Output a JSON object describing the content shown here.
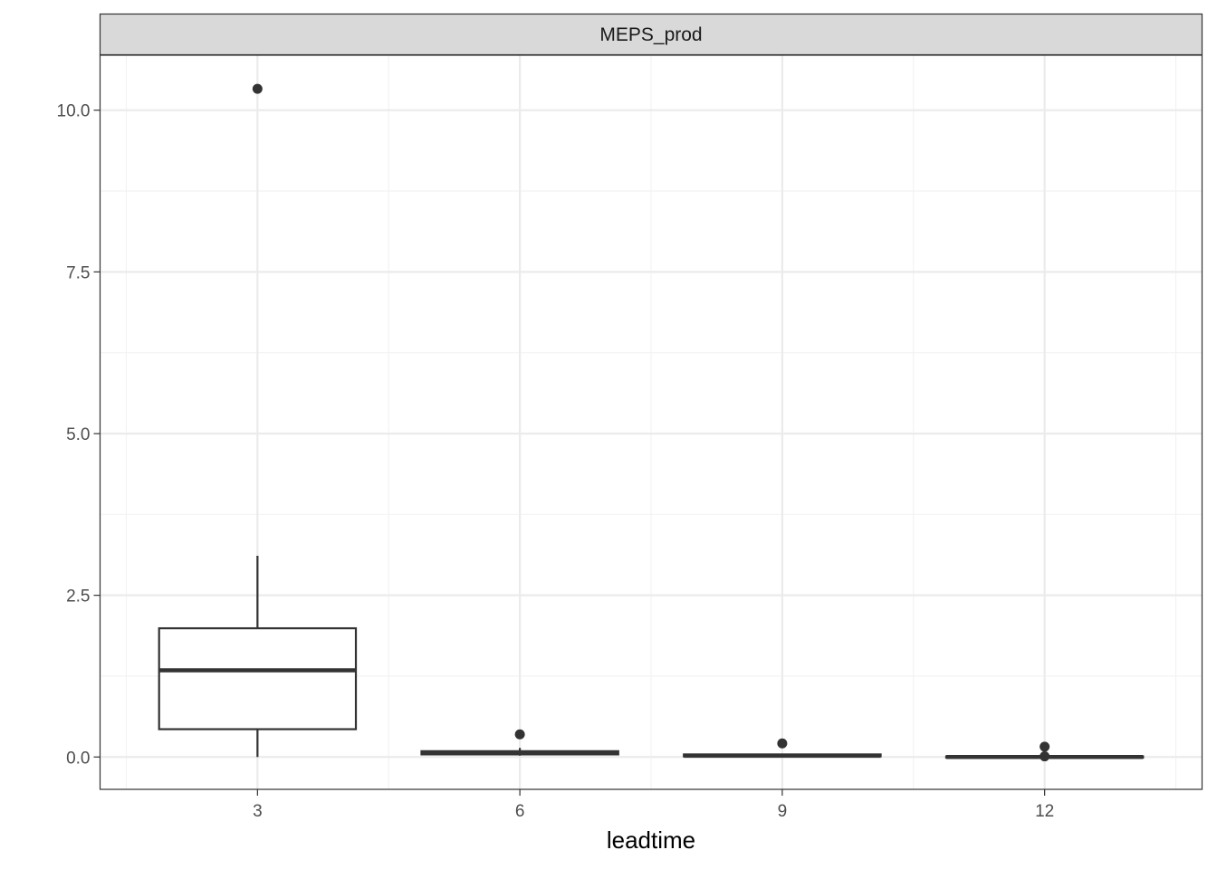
{
  "chart_data": {
    "type": "boxplot",
    "facet_label": "MEPS_prod",
    "xlabel": "leadtime",
    "ylabel": "",
    "categories": [
      "3",
      "6",
      "9",
      "12"
    ],
    "ylim": [
      -0.5,
      10.85
    ],
    "yticks": [
      0.0,
      2.5,
      5.0,
      7.5,
      10.0
    ],
    "ytick_labels": [
      "0.0",
      "2.5",
      "5.0",
      "7.5",
      "10.0"
    ],
    "grid": true,
    "theme": "bw",
    "boxes": [
      {
        "category": "3",
        "whisker_low": 0.0,
        "q1": 0.43,
        "median": 1.34,
        "q3": 1.99,
        "whisker_high": 3.11,
        "outliers": [
          10.33
        ]
      },
      {
        "category": "6",
        "whisker_low": 0.02,
        "q1": 0.04,
        "median": 0.06,
        "q3": 0.09,
        "whisker_high": 0.14,
        "outliers": [
          0.35
        ]
      },
      {
        "category": "9",
        "whisker_low": 0.0,
        "q1": 0.01,
        "median": 0.02,
        "q3": 0.04,
        "whisker_high": 0.05,
        "outliers": [
          0.21
        ]
      },
      {
        "category": "12",
        "whisker_low": -0.01,
        "q1": -0.01,
        "median": 0.0,
        "q3": 0.01,
        "whisker_high": 0.02,
        "outliers": [
          0.16,
          0.01
        ]
      }
    ],
    "colors": {
      "box": "#333333",
      "grid_major": "#ebebeb",
      "strip_fill": "#d9d9d9",
      "border": "#333333"
    }
  }
}
